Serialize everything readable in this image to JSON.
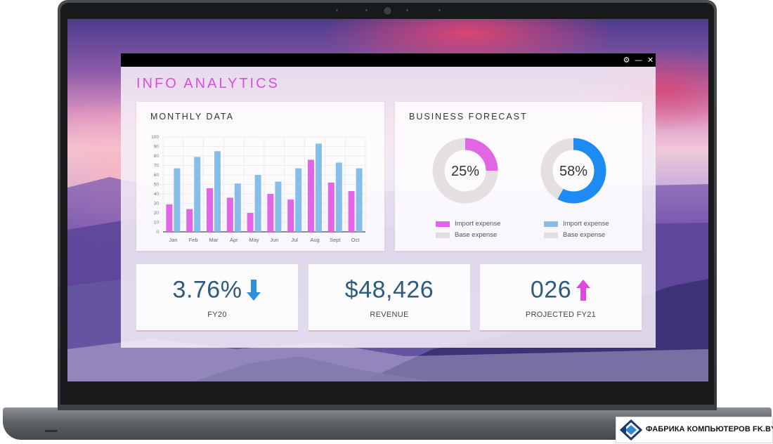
{
  "window": {
    "title": "INFO ANALYTICS",
    "controls": {
      "settings": "⚙",
      "minimize": "—",
      "close": "✕"
    }
  },
  "monthly": {
    "title": "MONTHLY DATA",
    "chart_data": {
      "type": "bar",
      "title": "MONTHLY DATA",
      "categories": [
        "Jan",
        "Feb",
        "Mar",
        "Apr",
        "May",
        "Jun",
        "Jul",
        "Aug",
        "Sept",
        "Oct"
      ],
      "series": [
        {
          "name": "",
          "color": "#e066e6",
          "values": [
            29,
            24,
            46,
            36,
            20,
            40,
            34,
            76,
            52,
            43
          ]
        },
        {
          "name": "",
          "color": "#86bde9",
          "values": [
            67,
            79,
            85,
            51,
            60,
            53,
            67,
            93,
            73,
            67
          ]
        }
      ],
      "yticks": [
        "0",
        "10",
        "20",
        "30",
        "40",
        "50",
        "60",
        "70",
        "80",
        "90",
        "100"
      ],
      "ylim": [
        0,
        100
      ],
      "grid": true
    }
  },
  "forecast": {
    "title": "BUSINESS FORECAST",
    "donuts": [
      {
        "percent": 25,
        "label": "25%",
        "color": "#e066e6",
        "legend": [
          {
            "label": "Import expense",
            "color": "#e066e6"
          },
          {
            "label": "Base expense",
            "color": "#e0dcdf"
          }
        ]
      },
      {
        "percent": 58,
        "label": "58%",
        "color": "#1e8bf2",
        "legend": [
          {
            "label": "Import expense",
            "color": "#86bde9"
          },
          {
            "label": "Base expense",
            "color": "#e0dcdf"
          }
        ]
      }
    ]
  },
  "kpis": [
    {
      "value": "3.76%",
      "label": "FY20",
      "arrow": "down",
      "arrow_color": "#2e8fe0"
    },
    {
      "value": "$48,426",
      "label": "REVENUE"
    },
    {
      "value": "026",
      "label": "PROJECTED FY21",
      "arrow": "up",
      "arrow_color": "#e046e0"
    }
  ],
  "watermark": {
    "text": "ФАБРИКА КОМПЬЮТЕРОВ FK.BY"
  }
}
